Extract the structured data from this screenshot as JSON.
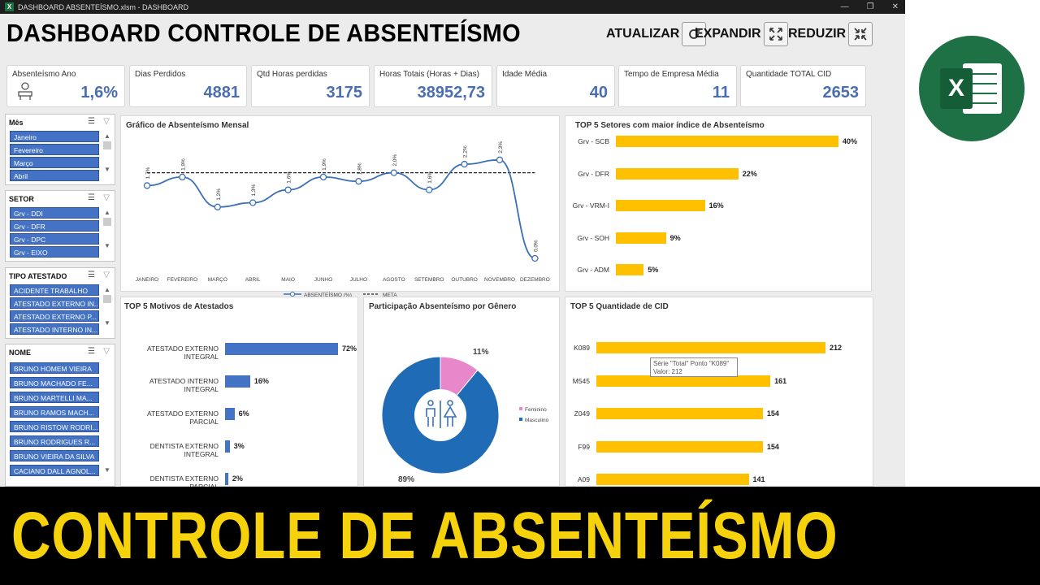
{
  "window": {
    "title": "DASHBOARD ABSENTEÍSMO.xlsm - DASHBOARD",
    "app_icon": "X"
  },
  "header": {
    "title": "DASHBOARD CONTROLE DE ABSENTEÍSMO",
    "buttons": {
      "refresh": "ATUALIZAR",
      "expand": "EXPANDIR",
      "reduce": "REDUZIR"
    }
  },
  "kpis": [
    {
      "label": "Absenteísmo Ano",
      "value": "1,6%"
    },
    {
      "label": "Dias Perdidos",
      "value": "4881"
    },
    {
      "label": "Qtd Horas perdidas",
      "value": "3175"
    },
    {
      "label": "Horas Totais (Horas + Dias)",
      "value": "38952,73"
    },
    {
      "label": "Idade Média",
      "value": "40"
    },
    {
      "label": "Tempo de Empresa Média",
      "value": "11"
    },
    {
      "label": "Quantidade TOTAL CID",
      "value": "2653"
    }
  ],
  "slicers": {
    "mes": {
      "title": "Mês",
      "items": [
        "Janeiro",
        "Fevereiro",
        "Março",
        "Abril"
      ]
    },
    "setor": {
      "title": "SETOR",
      "items": [
        "Grv - DDI",
        "Grv - DFR",
        "Grv - DPC",
        "Grv - EIXO"
      ]
    },
    "tipo": {
      "title": "TIPO ATESTADO",
      "items": [
        "ACIDENTE TRABALHO",
        "ATESTADO EXTERNO IN...",
        "ATESTADO EXTERNO P...",
        "ATESTADO INTERNO IN..."
      ]
    },
    "nome": {
      "title": "NOME",
      "items": [
        "BRUNO HOMEM VIEIRA",
        "BRUNO MACHADO FE...",
        "BRUNO MARTELLI MA...",
        "BRUNO RAMOS MACH...",
        "BRUNO RISTOW RODRI...",
        "BRUNO RODRIGUES R...",
        "BRUNO VIEIRA DA SILVA",
        "CACIANO DALL AGNOL..."
      ]
    }
  },
  "charts": {
    "monthly_title": "Gráfico de Absenteísmo Mensal",
    "setores_title": "TOP 5 Setores com maior índice de Absenteísmo",
    "motivos_title": "TOP 5 Motivos de Atestados",
    "genero_title": "Participação Absenteísmo por Gênero",
    "cid_title": "TOP 5 Quantidade de CID"
  },
  "tooltip": {
    "line1": "Série \"Total\" Ponto \"K089\"",
    "line2": "Valor: 212"
  },
  "banner": {
    "text": "CONTROLE DE ABSENTEÍSMO"
  },
  "colors": {
    "blue": "#4472c4",
    "gold": "#ffc000",
    "pink": "#e887c9",
    "navy": "#1f6bb5",
    "kpi_text": "#4a6fae",
    "banner": "#f5d20b"
  },
  "chart_data": [
    {
      "type": "line",
      "categories": [
        "JANEIRO",
        "FEVEREIRO",
        "MARÇO",
        "ABRIL",
        "MAIO",
        "JUNHO",
        "JULHO",
        "AGOSTO",
        "SETEMBRO",
        "OUTUBRO",
        "NOVEMBRO",
        "DEZEMBRO"
      ],
      "series": [
        {
          "name": "ABSENTEÍSMO (%)",
          "values": [
            1.7,
            1.9,
            1.2,
            1.3,
            1.6,
            1.9,
            1.8,
            2.0,
            1.6,
            2.2,
            2.3,
            0.0
          ],
          "labels": [
            "1,7%",
            "1,9%",
            "1,2%",
            "1,3%",
            "1,6%",
            "1,9%",
            "1,8%",
            "2,0%",
            "1,6%",
            "2,2%",
            "2,3%",
            "0,0%"
          ]
        },
        {
          "name": "META",
          "values": [
            2.0,
            2.0,
            2.0,
            2.0,
            2.0,
            2.0,
            2.0,
            2.0,
            2.0,
            2.0,
            2.0,
            2.0
          ]
        }
      ],
      "ylim": [
        0,
        2.6
      ],
      "legend": "bottom"
    },
    {
      "type": "bar",
      "orientation": "horizontal",
      "categories": [
        "Grv - SCB",
        "Grv - DFR",
        "Grv - VRM-I",
        "Grv - SOH",
        "Grv - ADM"
      ],
      "values": [
        40,
        22,
        16,
        9,
        5
      ],
      "labels": [
        "40%",
        "22%",
        "16%",
        "9%",
        "5%"
      ]
    },
    {
      "type": "bar",
      "orientation": "horizontal",
      "categories": [
        "ATESTADO EXTERNO INTEGRAL",
        "ATESTADO INTERNO INTEGRAL",
        "ATESTADO EXTERNO PARCIAL",
        "DENTISTA EXTERNO INTEGRAL",
        "DENTISTA EXTERNO PARCIAL"
      ],
      "values": [
        72,
        16,
        6,
        3,
        2
      ],
      "labels": [
        "72%",
        "16%",
        "6%",
        "3%",
        "2%"
      ]
    },
    {
      "type": "pie",
      "categories": [
        "Feminino",
        "Masculino"
      ],
      "values": [
        11,
        89
      ],
      "labels": [
        "11%",
        "89%"
      ],
      "legend": "right"
    },
    {
      "type": "bar",
      "orientation": "horizontal",
      "categories": [
        "K089",
        "M545",
        "Z049",
        "F99",
        "A09"
      ],
      "values": [
        212,
        161,
        154,
        154,
        141
      ],
      "labels": [
        "212",
        "161",
        "154",
        "154",
        "141"
      ]
    }
  ]
}
